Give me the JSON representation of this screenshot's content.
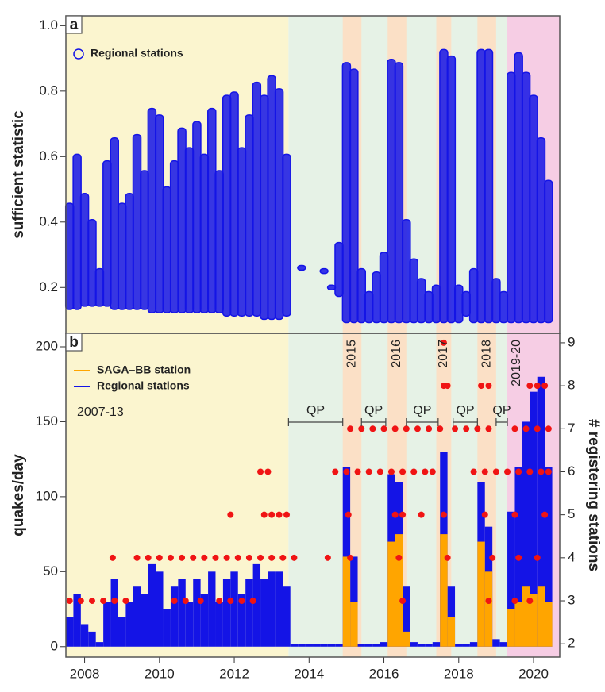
{
  "chart_data": [
    {
      "type": "range",
      "panel_label": "a",
      "ylabel": "sufficient statistic",
      "xlim": [
        2007.5,
        2020.7
      ],
      "ylim": [
        0.06,
        1.03
      ],
      "yticks": [
        0.2,
        0.4,
        0.6,
        0.8,
        {
          "value": 1,
          "label": "1.0"
        }
      ],
      "bands": [
        {
          "x": [
            2007.5,
            2013.45
          ],
          "color": "#fbf5cf"
        },
        {
          "x": [
            2013.45,
            2020.7
          ],
          "color": "#e6f2e6"
        },
        {
          "x": [
            2014.9,
            2015.4
          ],
          "color": "#fbe0c6"
        },
        {
          "x": [
            2016.1,
            2016.6
          ],
          "color": "#fbe0c6"
        },
        {
          "x": [
            2017.4,
            2017.8
          ],
          "color": "#fbe0c6"
        },
        {
          "x": [
            2018.5,
            2019.0
          ],
          "color": "#fbe0c6"
        },
        {
          "x": [
            2019.3,
            2020.7
          ],
          "color": "#f6cde4"
        }
      ],
      "series": [
        {
          "name": "Regional stations",
          "color": "#1414e6",
          "x": [
            2007.6,
            2007.8,
            2008.0,
            2008.2,
            2008.4,
            2008.6,
            2008.8,
            2009.0,
            2009.2,
            2009.4,
            2009.6,
            2009.8,
            2010.0,
            2010.2,
            2010.4,
            2010.6,
            2010.8,
            2011.0,
            2011.2,
            2011.4,
            2011.6,
            2011.8,
            2012.0,
            2012.2,
            2012.4,
            2012.6,
            2012.8,
            2013.0,
            2013.2,
            2013.4,
            2013.6,
            2013.8,
            2014.0,
            2014.2,
            2014.4,
            2014.6,
            2014.8,
            2015.0,
            2015.2,
            2015.4,
            2015.6,
            2015.8,
            2016.0,
            2016.2,
            2016.4,
            2016.6,
            2016.8,
            2017.0,
            2017.2,
            2017.4,
            2017.6,
            2017.8,
            2018.0,
            2018.2,
            2018.4,
            2018.6,
            2018.8,
            2019.0,
            2019.2,
            2019.4,
            2019.6,
            2019.8,
            2020.0,
            2020.2,
            2020.4
          ],
          "low": [
            0.14,
            0.14,
            0.15,
            0.15,
            0.15,
            0.15,
            0.14,
            0.14,
            0.14,
            0.14,
            0.14,
            0.13,
            0.13,
            0.13,
            0.13,
            0.13,
            0.13,
            0.13,
            0.13,
            0.13,
            0.13,
            0.12,
            0.12,
            0.12,
            0.12,
            0.12,
            0.11,
            0.11,
            0.11,
            0.12,
            null,
            0.26,
            null,
            null,
            0.25,
            0.2,
            0.18,
            0.1,
            0.1,
            0.1,
            0.1,
            0.1,
            0.1,
            0.1,
            0.1,
            0.1,
            0.1,
            0.1,
            0.1,
            0.1,
            0.1,
            0.1,
            0.1,
            0.12,
            0.1,
            0.1,
            0.1,
            0.1,
            0.1,
            0.1,
            0.1,
            0.1,
            0.1,
            0.1,
            0.1
          ],
          "high": [
            0.45,
            0.6,
            0.48,
            0.4,
            0.25,
            0.58,
            0.65,
            0.45,
            0.48,
            0.66,
            0.55,
            0.74,
            0.72,
            0.5,
            0.58,
            0.68,
            0.62,
            0.7,
            0.6,
            0.74,
            0.55,
            0.78,
            0.79,
            0.62,
            0.72,
            0.82,
            0.78,
            0.84,
            0.8,
            0.6,
            null,
            0.26,
            null,
            null,
            0.25,
            0.2,
            0.33,
            0.88,
            0.86,
            0.25,
            0.18,
            0.24,
            0.3,
            0.89,
            0.88,
            0.4,
            0.28,
            0.22,
            0.18,
            0.2,
            0.92,
            0.9,
            0.2,
            0.18,
            0.25,
            0.92,
            0.92,
            0.22,
            0.18,
            0.85,
            0.91,
            0.85,
            0.78,
            0.65,
            0.52
          ]
        }
      ]
    },
    {
      "type": "bar",
      "panel_label": "b",
      "ylabel": "quakes/day",
      "y2label": "# registering stations",
      "xlim": [
        2007.5,
        2020.7
      ],
      "ylim": [
        -7,
        209
      ],
      "y2lim": [
        1.69,
        9.22
      ],
      "xticks": [
        2008,
        2010,
        2012,
        2014,
        2016,
        2018,
        2020
      ],
      "yticks": [
        0,
        50,
        100,
        150,
        200
      ],
      "y2ticks": [
        2,
        3,
        4,
        5,
        6,
        7,
        8,
        9
      ],
      "bands": [
        {
          "x": [
            2007.5,
            2013.45
          ],
          "color": "#fbf5cf",
          "label": "2007-13"
        },
        {
          "x": [
            2013.45,
            2020.7
          ],
          "color": "#e6f2e6"
        },
        {
          "x": [
            2014.9,
            2015.4
          ],
          "color": "#fbe0c6",
          "label": "2015"
        },
        {
          "x": [
            2016.1,
            2016.6
          ],
          "color": "#fbe0c6",
          "label": "2016"
        },
        {
          "x": [
            2017.4,
            2017.8
          ],
          "color": "#fbe0c6",
          "label": "2017"
        },
        {
          "x": [
            2018.5,
            2019.0
          ],
          "color": "#fbe0c6",
          "label": "2018"
        },
        {
          "x": [
            2019.3,
            2020.7
          ],
          "color": "#f6cde4",
          "label": "2019-20"
        }
      ],
      "periods": [
        {
          "label": "QP",
          "x": [
            2013.45,
            2014.9
          ]
        },
        {
          "label": "QP",
          "x": [
            2015.4,
            2016.05
          ]
        },
        {
          "label": "QP",
          "x": [
            2016.6,
            2017.45
          ]
        },
        {
          "label": "QP",
          "x": [
            2017.85,
            2018.5
          ]
        },
        {
          "label": "QP",
          "x": [
            2019.0,
            2019.3
          ]
        }
      ],
      "x": [
        2007.6,
        2007.8,
        2008.0,
        2008.2,
        2008.4,
        2008.6,
        2008.8,
        2009.0,
        2009.2,
        2009.4,
        2009.6,
        2009.8,
        2010.0,
        2010.2,
        2010.4,
        2010.6,
        2010.8,
        2011.0,
        2011.2,
        2011.4,
        2011.6,
        2011.8,
        2012.0,
        2012.2,
        2012.4,
        2012.6,
        2012.8,
        2013.0,
        2013.2,
        2013.4,
        2013.6,
        2013.8,
        2014.0,
        2014.2,
        2014.4,
        2014.6,
        2014.8,
        2015.0,
        2015.2,
        2015.4,
        2015.6,
        2015.8,
        2016.0,
        2016.2,
        2016.4,
        2016.6,
        2016.8,
        2017.0,
        2017.2,
        2017.4,
        2017.6,
        2017.8,
        2018.0,
        2018.2,
        2018.4,
        2018.6,
        2018.8,
        2019.0,
        2019.2,
        2019.4,
        2019.6,
        2019.8,
        2020.0,
        2020.2,
        2020.4
      ],
      "series": [
        {
          "name": "SAGA–BB station",
          "color": "#ffa500",
          "values": [
            null,
            null,
            null,
            null,
            null,
            null,
            null,
            null,
            null,
            null,
            null,
            null,
            null,
            null,
            null,
            null,
            null,
            null,
            null,
            null,
            null,
            null,
            null,
            null,
            null,
            null,
            null,
            null,
            null,
            null,
            0,
            0,
            0,
            0,
            0,
            0,
            0,
            60,
            30,
            0,
            0,
            0,
            0,
            70,
            75,
            10,
            0,
            0,
            0,
            0,
            75,
            20,
            0,
            0,
            0,
            70,
            50,
            0,
            0,
            25,
            30,
            40,
            35,
            40,
            30
          ]
        },
        {
          "name": "Regional stations",
          "color": "#1414e6",
          "values": [
            20,
            35,
            15,
            10,
            3,
            30,
            45,
            20,
            30,
            40,
            35,
            55,
            50,
            25,
            40,
            45,
            30,
            45,
            35,
            50,
            30,
            45,
            50,
            35,
            45,
            55,
            45,
            50,
            50,
            40,
            2,
            2,
            2,
            2,
            2,
            2,
            2,
            120,
            60,
            2,
            2,
            2,
            3,
            115,
            110,
            40,
            3,
            2,
            2,
            3,
            130,
            40,
            2,
            2,
            3,
            110,
            80,
            5,
            3,
            90,
            120,
            150,
            170,
            180,
            120
          ]
        },
        {
          "type": "scatter",
          "axis": "y2",
          "color": "#f01414",
          "x": [
            2007.6,
            2007.9,
            2008.2,
            2008.5,
            2008.8,
            2009.1,
            2008.75,
            2009.4,
            2009.7,
            2010,
            2010.3,
            2010.6,
            2010.9,
            2011.2,
            2011.5,
            2011.8,
            2012.1,
            2012.4,
            2012.7,
            2013,
            2013.3,
            2013.6,
            2010.4,
            2010.7,
            2011.1,
            2011.6,
            2011.9,
            2012.2,
            2012.5,
            2011.9,
            2012.8,
            2013,
            2013.2,
            2013.4,
            2012.7,
            2012.9,
            2014.5,
            2014.7,
            2015,
            2015.3,
            2015.6,
            2015.9,
            2016.2,
            2016.5,
            2016.8,
            2017.1,
            2017.3,
            2018.4,
            2018.7,
            2019,
            2019.3,
            2019.6,
            2019.9,
            2020.2,
            2020.4,
            2015.1,
            2015.4,
            2015.7,
            2016,
            2016.3,
            2016.6,
            2016.9,
            2017.2,
            2017.5,
            2017.9,
            2018.2,
            2018.5,
            2018.8,
            2019.5,
            2019.8,
            2020.1,
            2020.4,
            2015.05,
            2016.3,
            2016.5,
            2017,
            2017.6,
            2018.7,
            2019.5,
            2020.3,
            2015.1,
            2016.4,
            2017.7,
            2018.9,
            2019.6,
            2020.1,
            2016.5,
            2018.8,
            2019.5,
            2019.9,
            2017.6,
            2017.7,
            2018.6,
            2018.8,
            2019.9,
            2020.1,
            2020.3,
            2017.6
          ],
          "values": [
            3,
            3,
            3,
            3,
            3,
            3,
            4,
            4,
            4,
            4,
            4,
            4,
            4,
            4,
            4,
            4,
            4,
            4,
            4,
            4,
            4,
            4,
            3,
            3,
            3,
            3,
            3,
            3,
            3,
            5,
            5,
            5,
            5,
            5,
            6,
            6,
            4,
            6,
            6,
            6,
            6,
            6,
            6,
            6,
            6,
            6,
            6,
            6,
            6,
            6,
            6,
            6,
            6,
            6,
            6,
            7,
            7,
            7,
            7,
            7,
            7,
            7,
            7,
            7,
            7,
            7,
            7,
            7,
            7,
            7,
            7,
            7,
            5,
            5,
            5,
            5,
            5,
            5,
            5,
            5,
            4,
            4,
            4,
            4,
            4,
            4,
            3,
            3,
            3,
            3,
            8,
            8,
            8,
            8,
            8,
            8,
            8,
            9
          ]
        }
      ]
    }
  ]
}
